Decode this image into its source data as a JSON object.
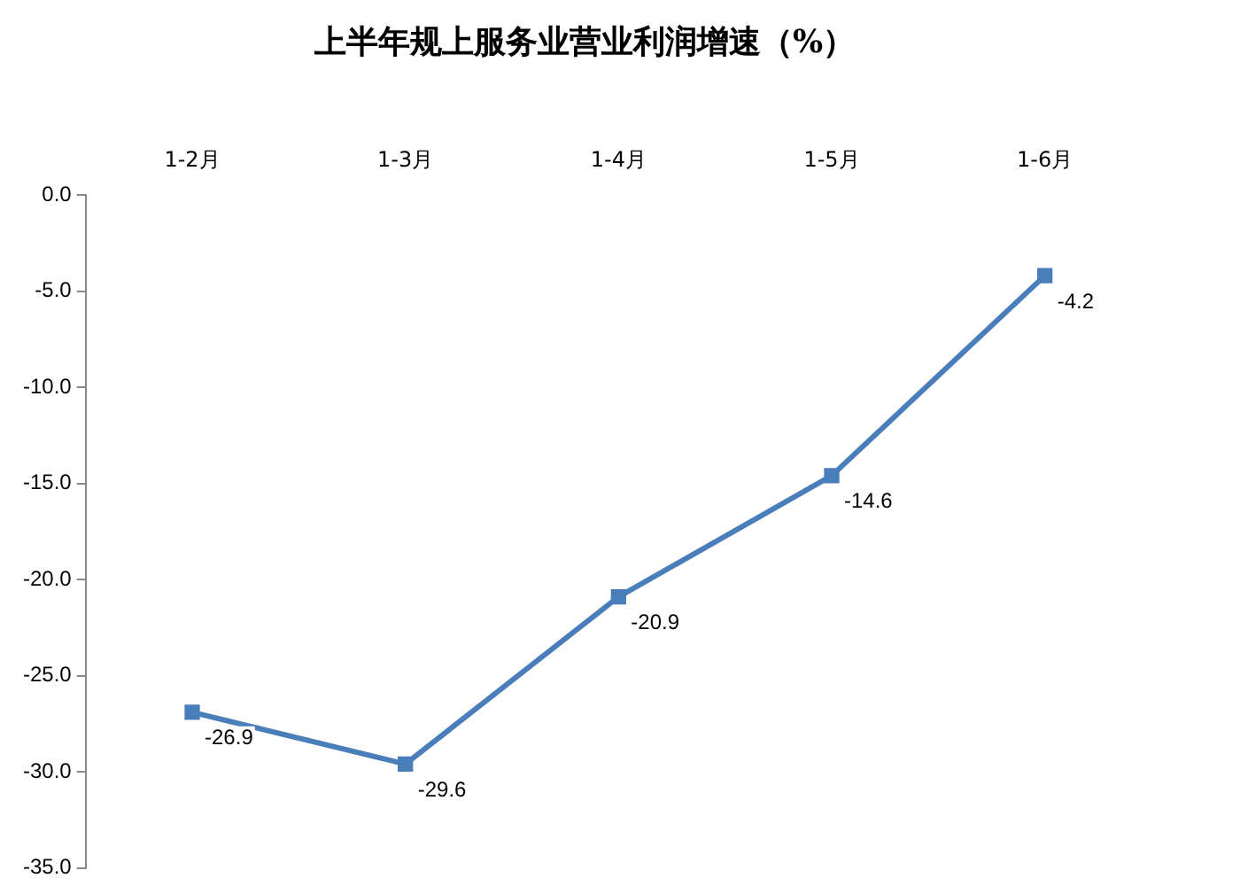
{
  "chart_data": {
    "type": "line",
    "title": "上半年规上服务业营业利润增速（%）",
    "categories": [
      "1-2月",
      "1-3月",
      "1-4月",
      "1-5月",
      "1-6月"
    ],
    "series": [
      {
        "color": "#4a7ebb",
        "values": [
          -26.9,
          -29.6,
          -20.9,
          -14.6,
          -4.2
        ]
      }
    ],
    "ylim": [
      -35,
      0
    ],
    "yticks": [
      {
        "value": 0,
        "label": "0.0"
      },
      {
        "value": -5,
        "label": "-5.0"
      },
      {
        "value": -10,
        "label": "-10.0"
      },
      {
        "value": -15,
        "label": "-15.0"
      },
      {
        "value": -20,
        "label": "-20.0"
      },
      {
        "value": -25,
        "label": "-25.0"
      },
      {
        "value": -30,
        "label": "-30.0"
      },
      {
        "value": -35,
        "label": "-35.0"
      }
    ],
    "marker": "square",
    "line_style": "solid",
    "grid": false,
    "legend": false,
    "data_labels": true
  }
}
